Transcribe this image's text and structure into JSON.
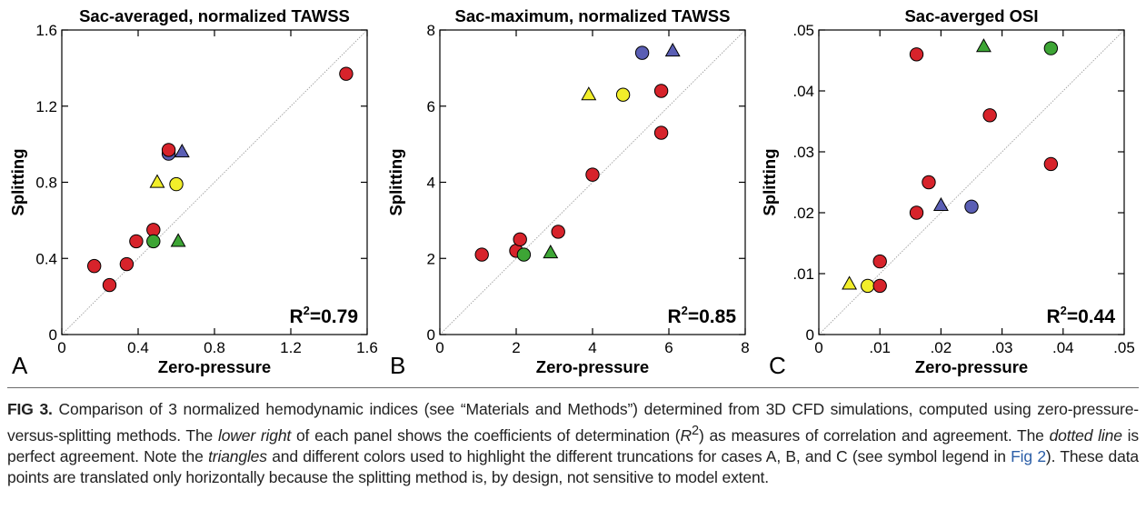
{
  "figure": {
    "caption": {
      "label": "FIG 3.",
      "seg1": "Comparison of 3 normalized hemodynamic indices (see “Materials and Methods”) determined from 3D CFD simulations, computed using zero-pressure-versus-splitting methods. The ",
      "em1": "lower right",
      "seg2": " of each panel shows the coefficients of determination (",
      "em2": "R",
      "sup": "2",
      "seg3": ") as measures of correlation and agreement. The ",
      "em3": "dotted line",
      "seg4": " is perfect agreement. Note the ",
      "em4": "triangles",
      "seg5": " and different colors used to highlight the different truncations for cases A, B, and C (see symbol legend in ",
      "link": "Fig 2",
      "seg6": "). These data points are translated only horizontally because the splitting method is, by design, not sensitive to model extent."
    }
  },
  "colors": {
    "red": "#d7232b",
    "blue": "#5a5eb4",
    "yellow": "#f2ee2a",
    "green": "#3da535",
    "identity_line": "#a0a0a0"
  },
  "chart_data": [
    {
      "type": "scatter",
      "panel_letter": "A",
      "title": "Sac-averaged, normalized TAWSS",
      "xlabel": "Zero-pressure",
      "ylabel": "Splitting",
      "xlim": [
        0,
        1.6
      ],
      "ylim": [
        0,
        1.6
      ],
      "xticks": [
        "0",
        "0.4",
        "0.8",
        "1.2",
        "1.6"
      ],
      "yticks": [
        "0",
        "0.4",
        "0.8",
        "1.2",
        "1.6"
      ],
      "r2_prefix": "R",
      "r2_sup": "2",
      "r2_value": "=0.79",
      "identity_line": true,
      "points": [
        {
          "x": 0.17,
          "y": 0.36,
          "color": "red",
          "marker": "circle"
        },
        {
          "x": 0.25,
          "y": 0.26,
          "color": "red",
          "marker": "circle"
        },
        {
          "x": 0.34,
          "y": 0.37,
          "color": "red",
          "marker": "circle"
        },
        {
          "x": 0.39,
          "y": 0.49,
          "color": "red",
          "marker": "circle"
        },
        {
          "x": 0.48,
          "y": 0.55,
          "color": "red",
          "marker": "circle"
        },
        {
          "x": 0.48,
          "y": 0.49,
          "color": "green",
          "marker": "circle"
        },
        {
          "x": 0.61,
          "y": 0.49,
          "color": "green",
          "marker": "triangle"
        },
        {
          "x": 0.5,
          "y": 0.8,
          "color": "yellow",
          "marker": "triangle"
        },
        {
          "x": 0.6,
          "y": 0.79,
          "color": "yellow",
          "marker": "circle"
        },
        {
          "x": 0.56,
          "y": 0.95,
          "color": "blue",
          "marker": "circle"
        },
        {
          "x": 0.63,
          "y": 0.96,
          "color": "blue",
          "marker": "triangle"
        },
        {
          "x": 0.56,
          "y": 0.97,
          "color": "red",
          "marker": "circle"
        },
        {
          "x": 1.49,
          "y": 1.37,
          "color": "red",
          "marker": "circle"
        }
      ]
    },
    {
      "type": "scatter",
      "panel_letter": "B",
      "title": "Sac-maximum, normalized TAWSS",
      "xlabel": "Zero-pressure",
      "ylabel": "Splitting",
      "xlim": [
        0,
        8
      ],
      "ylim": [
        0,
        8
      ],
      "xticks": [
        "0",
        "2",
        "4",
        "6",
        "8"
      ],
      "yticks": [
        "0",
        "2",
        "4",
        "6",
        "8"
      ],
      "r2_prefix": "R",
      "r2_sup": "2",
      "r2_value": "=0.85",
      "identity_line": true,
      "points": [
        {
          "x": 1.1,
          "y": 2.1,
          "color": "red",
          "marker": "circle"
        },
        {
          "x": 2.0,
          "y": 2.2,
          "color": "red",
          "marker": "circle"
        },
        {
          "x": 2.1,
          "y": 2.5,
          "color": "red",
          "marker": "circle"
        },
        {
          "x": 2.2,
          "y": 2.1,
          "color": "green",
          "marker": "circle"
        },
        {
          "x": 2.9,
          "y": 2.15,
          "color": "green",
          "marker": "triangle"
        },
        {
          "x": 3.1,
          "y": 2.7,
          "color": "red",
          "marker": "circle"
        },
        {
          "x": 4.0,
          "y": 4.2,
          "color": "red",
          "marker": "circle"
        },
        {
          "x": 3.9,
          "y": 6.3,
          "color": "yellow",
          "marker": "triangle"
        },
        {
          "x": 4.8,
          "y": 6.3,
          "color": "yellow",
          "marker": "circle"
        },
        {
          "x": 5.3,
          "y": 7.4,
          "color": "blue",
          "marker": "circle"
        },
        {
          "x": 6.1,
          "y": 7.45,
          "color": "blue",
          "marker": "triangle"
        },
        {
          "x": 5.8,
          "y": 6.4,
          "color": "red",
          "marker": "circle"
        },
        {
          "x": 5.8,
          "y": 5.3,
          "color": "red",
          "marker": "circle"
        }
      ]
    },
    {
      "type": "scatter",
      "panel_letter": "C",
      "title": "Sac-averged OSI",
      "xlabel": "Zero-pressure",
      "ylabel": "Splitting",
      "xlim": [
        0,
        0.05
      ],
      "ylim": [
        0,
        0.05
      ],
      "xticks": [
        "0",
        ".01",
        ".02",
        ".03",
        ".04",
        ".05"
      ],
      "yticks": [
        "0",
        ".01",
        ".02",
        ".03",
        ".04",
        ".05"
      ],
      "r2_prefix": "R",
      "r2_sup": "2",
      "r2_value": "=0.44",
      "identity_line": true,
      "points": [
        {
          "x": 0.005,
          "y": 0.0083,
          "color": "yellow",
          "marker": "triangle"
        },
        {
          "x": 0.008,
          "y": 0.008,
          "color": "yellow",
          "marker": "circle"
        },
        {
          "x": 0.01,
          "y": 0.008,
          "color": "red",
          "marker": "circle"
        },
        {
          "x": 0.01,
          "y": 0.012,
          "color": "red",
          "marker": "circle"
        },
        {
          "x": 0.016,
          "y": 0.02,
          "color": "red",
          "marker": "circle"
        },
        {
          "x": 0.018,
          "y": 0.025,
          "color": "red",
          "marker": "circle"
        },
        {
          "x": 0.02,
          "y": 0.0212,
          "color": "blue",
          "marker": "triangle"
        },
        {
          "x": 0.025,
          "y": 0.021,
          "color": "blue",
          "marker": "circle"
        },
        {
          "x": 0.016,
          "y": 0.046,
          "color": "red",
          "marker": "circle"
        },
        {
          "x": 0.028,
          "y": 0.036,
          "color": "red",
          "marker": "circle"
        },
        {
          "x": 0.027,
          "y": 0.0473,
          "color": "green",
          "marker": "triangle"
        },
        {
          "x": 0.038,
          "y": 0.047,
          "color": "green",
          "marker": "circle"
        },
        {
          "x": 0.038,
          "y": 0.028,
          "color": "red",
          "marker": "circle"
        }
      ]
    }
  ]
}
